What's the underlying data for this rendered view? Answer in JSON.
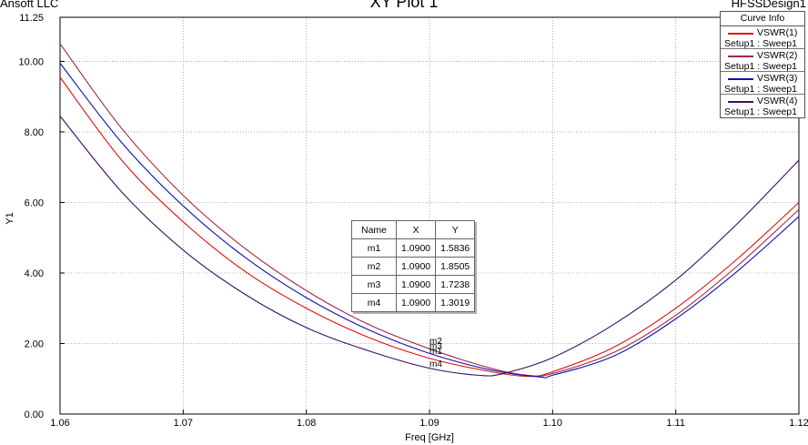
{
  "header": {
    "company": "Ansoft LLC",
    "title": "XY Plot 1",
    "design": "HFSSDesign1"
  },
  "legend": {
    "title": "Curve Info",
    "entries": [
      {
        "name": "VSWR(1)",
        "setup": "Setup1 : Sweep1",
        "color": "#e01010"
      },
      {
        "name": "VSWR(2)",
        "setup": "Setup1 : Sweep1",
        "color": "#9a2a4a"
      },
      {
        "name": "VSWR(3)",
        "setup": "Setup1 : Sweep1",
        "color": "#1010b0"
      },
      {
        "name": "VSWR(4)",
        "setup": "Setup1 : Sweep1",
        "color": "#3a1060"
      }
    ]
  },
  "markers_table": {
    "headers": [
      "Name",
      "X",
      "Y"
    ],
    "rows": [
      [
        "m1",
        "1.0900",
        "1.5836"
      ],
      [
        "m2",
        "1.0900",
        "1.8505"
      ],
      [
        "m3",
        "1.0900",
        "1.7238"
      ],
      [
        "m4",
        "1.0900",
        "1.3019"
      ]
    ]
  },
  "chart_data": {
    "type": "line",
    "xlabel": "Freq [GHz]",
    "ylabel": "Y1",
    "xlim": [
      1.06,
      1.12
    ],
    "ylim": [
      0,
      11.25
    ],
    "x_ticks": [
      "1.06",
      "1.07",
      "1.08",
      "1.09",
      "1.10",
      "1.11",
      "1.12"
    ],
    "y_ticks": [
      "0.00",
      "2.00",
      "4.00",
      "6.00",
      "8.00",
      "10.00",
      "11.25"
    ],
    "grid": true,
    "legend_position": "top-right",
    "series": [
      {
        "name": "VSWR(1)",
        "color": "#e01010",
        "x": [
          1.06,
          1.065,
          1.07,
          1.075,
          1.08,
          1.085,
          1.09,
          1.095,
          1.098,
          1.1,
          1.105,
          1.11,
          1.115,
          1.12
        ],
        "values": [
          9.55,
          7.2,
          5.45,
          4.05,
          3.0,
          2.18,
          1.58,
          1.2,
          1.07,
          1.2,
          1.9,
          3.0,
          4.4,
          6.0
        ]
      },
      {
        "name": "VSWR(2)",
        "color": "#9a2a4a",
        "x": [
          1.06,
          1.065,
          1.07,
          1.075,
          1.08,
          1.085,
          1.09,
          1.095,
          1.098,
          1.1,
          1.105,
          1.11,
          1.115,
          1.12
        ],
        "values": [
          10.5,
          8.1,
          6.2,
          4.7,
          3.5,
          2.55,
          1.85,
          1.3,
          1.1,
          1.15,
          1.75,
          2.8,
          4.2,
          5.8
        ]
      },
      {
        "name": "VSWR(3)",
        "color": "#1010b0",
        "x": [
          1.06,
          1.065,
          1.07,
          1.075,
          1.08,
          1.085,
          1.09,
          1.095,
          1.099,
          1.1,
          1.105,
          1.11,
          1.115,
          1.12
        ],
        "values": [
          9.95,
          7.7,
          5.9,
          4.45,
          3.3,
          2.4,
          1.72,
          1.25,
          1.05,
          1.1,
          1.65,
          2.7,
          4.05,
          5.6
        ]
      },
      {
        "name": "VSWR(4)",
        "color": "#3a1060",
        "x": [
          1.06,
          1.065,
          1.07,
          1.075,
          1.08,
          1.085,
          1.09,
          1.094,
          1.096,
          1.1,
          1.105,
          1.11,
          1.115,
          1.12
        ],
        "values": [
          8.45,
          6.3,
          4.65,
          3.4,
          2.45,
          1.8,
          1.3,
          1.1,
          1.15,
          1.6,
          2.55,
          3.8,
          5.4,
          7.2
        ]
      }
    ],
    "markers": [
      {
        "name": "m1",
        "x": 1.09,
        "y": 1.5836
      },
      {
        "name": "m2",
        "x": 1.09,
        "y": 1.8505
      },
      {
        "name": "m3",
        "x": 1.09,
        "y": 1.7238
      },
      {
        "name": "m4",
        "x": 1.09,
        "y": 1.3019
      }
    ]
  }
}
